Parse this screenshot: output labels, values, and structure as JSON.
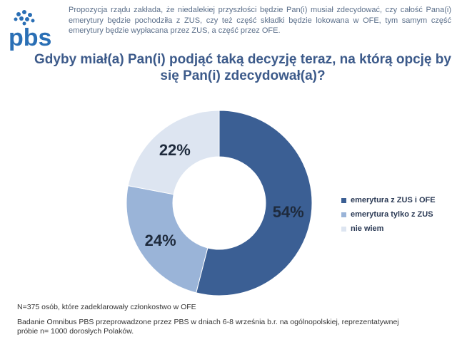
{
  "logo": {
    "text": "pbs",
    "color": "#2a6fb5"
  },
  "intro": "Propozycja rządu zakłada, że niedalekiej przyszłości będzie Pan(i) musiał zdecydować, czy całość Pana(i) emerytury będzie pochodziła z ZUS, czy też część składki będzie lokowana w OFE, tym samym część emerytury będzie wypłacana przez ZUS, a część przez OFE.",
  "question": "Gdyby miał(a) Pan(i) podjąć taką decyzję teraz, na którą opcję by się Pan(i) zdecydował(a)?",
  "chart_data": {
    "type": "pie",
    "variant": "donut",
    "title": "Gdyby miał(a) Pan(i) podjąć taką decyzję teraz, na którą opcję by się Pan(i) zdecydował(a)?",
    "categories": [
      "emerytura z ZUS i OFE",
      "emerytura tylko z ZUS",
      "nie wiem"
    ],
    "values": [
      54,
      24,
      22
    ],
    "labels": [
      "54%",
      "24%",
      "22%"
    ],
    "colors": [
      "#3b5f94",
      "#9ab4d8",
      "#dde5f1"
    ],
    "legend_position": "right"
  },
  "notes": {
    "sample": "N=375 osób, które zadeklarowały członkostwo w OFE",
    "source": "Badanie Omnibus PBS przeprowadzone przez PBS w dniach 6-8 września b.r. na ogólnopolskiej, reprezentatywnej próbie n= 1000 dorosłych Polaków."
  }
}
